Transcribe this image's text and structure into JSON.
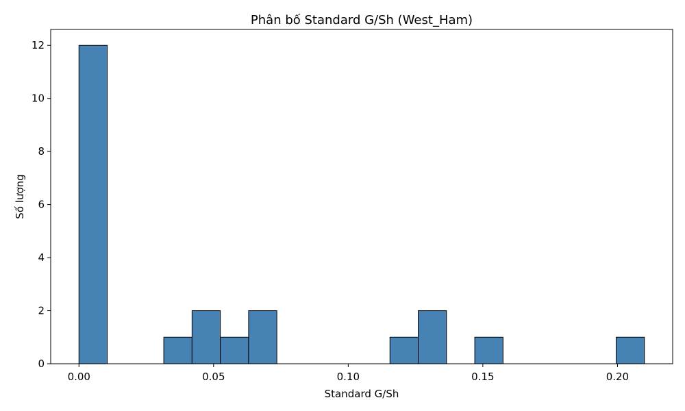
{
  "chart_data": {
    "type": "bar",
    "title": "Phân bố Standard G/Sh (West_Ham)",
    "xlabel": "Standard G/Sh",
    "ylabel": "Số lượng",
    "bin_start": 0.0,
    "bin_width": 0.0105,
    "counts": [
      12,
      0,
      0,
      1,
      2,
      1,
      2,
      0,
      0,
      0,
      0,
      1,
      2,
      0,
      1,
      0,
      0,
      0,
      0,
      1
    ],
    "xlim": [
      -0.0105,
      0.2205
    ],
    "ylim": [
      0,
      12.6
    ],
    "x_ticks": [
      {
        "value": 0.0,
        "label": "0.00"
      },
      {
        "value": 0.05,
        "label": "0.05"
      },
      {
        "value": 0.1,
        "label": "0.10"
      },
      {
        "value": 0.15,
        "label": "0.15"
      },
      {
        "value": 0.2,
        "label": "0.20"
      }
    ],
    "y_ticks": [
      {
        "value": 0,
        "label": "0"
      },
      {
        "value": 2,
        "label": "2"
      },
      {
        "value": 4,
        "label": "4"
      },
      {
        "value": 6,
        "label": "6"
      },
      {
        "value": 8,
        "label": "8"
      },
      {
        "value": 10,
        "label": "10"
      },
      {
        "value": 12,
        "label": "12"
      }
    ],
    "bar_color": "#4682b4",
    "edge_color": "#000000",
    "grid": false,
    "legend": "none"
  }
}
